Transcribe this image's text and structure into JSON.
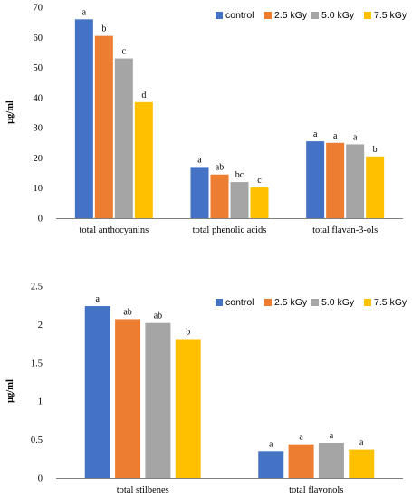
{
  "colors": {
    "control": "#4472C4",
    "k25": "#ED7D31",
    "k50": "#A5A5A5",
    "k75": "#FFC000",
    "axis": "#808080"
  },
  "legend": [
    "control",
    "2.5 kGy",
    "5.0 kGy",
    "7.5 kGy"
  ],
  "chart_data": [
    {
      "type": "bar",
      "title": "",
      "xlabel": "",
      "ylabel": "μg/ml",
      "ylim": [
        0,
        70
      ],
      "yticks": [
        0,
        10,
        20,
        30,
        40,
        50,
        60,
        70
      ],
      "ytick_labels": [
        "0",
        "10",
        "20",
        "30",
        "40",
        "50",
        "60",
        "70"
      ],
      "legend_position": "top-right",
      "grid": false,
      "categories": [
        "total anthocyanins",
        "total phenolic acids",
        "total flavan-3-ols"
      ],
      "series": [
        {
          "name": "control",
          "values": [
            66,
            17,
            25.5
          ],
          "labels": [
            "a",
            "a",
            "a"
          ]
        },
        {
          "name": "2.5 kGy",
          "values": [
            60.5,
            14.5,
            25
          ],
          "labels": [
            "b",
            "ab",
            "a"
          ]
        },
        {
          "name": "5.0 kGy",
          "values": [
            53,
            12,
            24.5
          ],
          "labels": [
            "c",
            "bc",
            "a"
          ]
        },
        {
          "name": "7.5 kGy",
          "values": [
            38.5,
            10.2,
            20.5
          ],
          "labels": [
            "d",
            "c",
            "b"
          ]
        }
      ]
    },
    {
      "type": "bar",
      "title": "",
      "xlabel": "",
      "ylabel": "μg/ml",
      "ylim": [
        0,
        2.5
      ],
      "yticks": [
        0,
        0.5,
        1,
        1.5,
        2,
        2.5
      ],
      "ytick_labels": [
        "0",
        "0.5",
        "1",
        "1.5",
        "2",
        "2.5"
      ],
      "legend_position": "top-right",
      "grid": false,
      "categories": [
        "total stilbenes",
        "total flavonols"
      ],
      "series": [
        {
          "name": "control",
          "values": [
            2.24,
            0.35
          ],
          "labels": [
            "a",
            "a"
          ]
        },
        {
          "name": "2.5 kGy",
          "values": [
            2.07,
            0.44
          ],
          "labels": [
            "ab",
            "a"
          ]
        },
        {
          "name": "5.0 kGy",
          "values": [
            2.02,
            0.46
          ],
          "labels": [
            "ab",
            "a"
          ]
        },
        {
          "name": "7.5 kGy",
          "values": [
            1.81,
            0.37
          ],
          "labels": [
            "b",
            "a"
          ]
        }
      ]
    }
  ]
}
